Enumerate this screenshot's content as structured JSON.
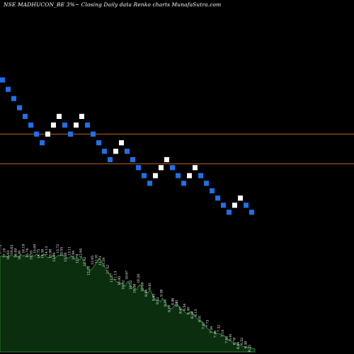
{
  "chart_data": {
    "type": "renko",
    "title": "NSE MADHUCON_BE 3%~ Closing Daily data Renko charts MunafaSutra.com",
    "levels": [
      20.52,
      18.78
    ],
    "ylim": [
      7.6,
      28.4
    ],
    "colors": {
      "background": "#000000",
      "down_brick": "#1f6fe8",
      "up_brick": "#ffffff",
      "level_line": "#b86a25",
      "volume_fill": "#0b2e0f",
      "volume_stroke": "#2e7d32",
      "label": "#ffffff"
    },
    "bricks": [
      {
        "dir": "down",
        "value": 23.7
      },
      {
        "dir": "down",
        "value": 23.15
      },
      {
        "dir": "down",
        "value": 22.61
      },
      {
        "dir": "down",
        "value": 22.07
      },
      {
        "dir": "down",
        "value": 21.56
      },
      {
        "dir": "down",
        "value": 21.05
      },
      {
        "dir": "down",
        "value": 20.52
      },
      {
        "dir": "down",
        "value": 20.01
      },
      {
        "dir": "up",
        "value": 20.52
      },
      {
        "dir": "up",
        "value": 21.05
      },
      {
        "dir": "up",
        "value": 21.56
      },
      {
        "dir": "down",
        "value": 21.05
      },
      {
        "dir": "down",
        "value": 20.52
      },
      {
        "dir": "up",
        "value": 21.05
      },
      {
        "dir": "up",
        "value": 21.56
      },
      {
        "dir": "down",
        "value": 21.05
      },
      {
        "dir": "down",
        "value": 20.52
      },
      {
        "dir": "down",
        "value": 20.01
      },
      {
        "dir": "down",
        "value": 19.51
      },
      {
        "dir": "down",
        "value": 19.02
      },
      {
        "dir": "up",
        "value": 19.51
      },
      {
        "dir": "up",
        "value": 20.01
      },
      {
        "dir": "down",
        "value": 19.51
      },
      {
        "dir": "down",
        "value": 19.02
      },
      {
        "dir": "down",
        "value": 18.55
      },
      {
        "dir": "down",
        "value": 18.08
      },
      {
        "dir": "down",
        "value": 17.63
      },
      {
        "dir": "up",
        "value": 18.08
      },
      {
        "dir": "up",
        "value": 18.55
      },
      {
        "dir": "up",
        "value": 19.02
      },
      {
        "dir": "down",
        "value": 18.55
      },
      {
        "dir": "down",
        "value": 18.08
      },
      {
        "dir": "down",
        "value": 17.63
      },
      {
        "dir": "up",
        "value": 18.08
      },
      {
        "dir": "up",
        "value": 18.55
      },
      {
        "dir": "down",
        "value": 18.08
      },
      {
        "dir": "down",
        "value": 17.63
      },
      {
        "dir": "down",
        "value": 17.19
      },
      {
        "dir": "down",
        "value": 16.76
      },
      {
        "dir": "down",
        "value": 16.34
      },
      {
        "dir": "down",
        "value": 15.93
      },
      {
        "dir": "up",
        "value": 16.34
      },
      {
        "dir": "up",
        "value": 16.76
      },
      {
        "dir": "down",
        "value": 16.34
      },
      {
        "dir": "down",
        "value": 15.93
      }
    ],
    "volume_profile": [
      134,
      136,
      134,
      137,
      135,
      134,
      136,
      135,
      138,
      136,
      134,
      137,
      135,
      134,
      136,
      138,
      135,
      137,
      134,
      136,
      135,
      137,
      134,
      136,
      135,
      137,
      138,
      136,
      134,
      136,
      137,
      138,
      136,
      134,
      133,
      135,
      134,
      136,
      134,
      133,
      135,
      137,
      136,
      138,
      137,
      135,
      134,
      133,
      132,
      134,
      136,
      134,
      132,
      131,
      133,
      131,
      130,
      134,
      131,
      126,
      123,
      119,
      117,
      114,
      116,
      118,
      121,
      124,
      127,
      130,
      132,
      128,
      125,
      122,
      118,
      115,
      112,
      110,
      106,
      104,
      102,
      101,
      99,
      98,
      96,
      97,
      95,
      94,
      93,
      98,
      100,
      96,
      92,
      90,
      91,
      89,
      88,
      92,
      95,
      93,
      90,
      87,
      85,
      84,
      83,
      88,
      86,
      81,
      77,
      74,
      72,
      73,
      72,
      71,
      76,
      73,
      70,
      66,
      64,
      62,
      60,
      62,
      64,
      67,
      70,
      66,
      63,
      61,
      60,
      58,
      56,
      54,
      53,
      55,
      57,
      55,
      53,
      50,
      48,
      46,
      45,
      44,
      43,
      40,
      38,
      35,
      33,
      30,
      29,
      28,
      27,
      27,
      26,
      26,
      26,
      25,
      24,
      23,
      22,
      20,
      18,
      16,
      15,
      14,
      13,
      12,
      12,
      11,
      10,
      9,
      8,
      8,
      7,
      7,
      6,
      6,
      6,
      5,
      5,
      4
    ],
    "volume_labels": [
      "17.75",
      "17.18",
      "16.93",
      "16.63",
      "16.49",
      "16.30",
      "16.18",
      "15.74",
      "15.55",
      "15.09",
      "14.75",
      "14.38",
      "14.13",
      "13.98",
      "13.89",
      "13.72",
      "13.55",
      "13.38",
      "13.11",
      "12.94",
      "12.78",
      "12.64",
      "12.42",
      "12.28",
      "12.05",
      "11.91",
      "11.73",
      "11.59",
      "11.42",
      "11.27",
      "11.13",
      "10.95",
      "10.82",
      "10.67",
      "10.52",
      "10.38",
      "10.20",
      "10.08",
      "9.94",
      "9.81",
      "9.65",
      "9.52",
      "9.38",
      "9.24",
      "9.10",
      "8.96",
      "8.81",
      "8.67",
      "8.54",
      "8.40",
      "8.28",
      "8.13",
      "8.01",
      "7.87",
      "7.73",
      "7.59",
      "7.46",
      "7.32",
      "7.19",
      "7.04",
      "6.91",
      "6.78",
      "6.64",
      "6.52",
      "6.38",
      "6.25"
    ]
  }
}
